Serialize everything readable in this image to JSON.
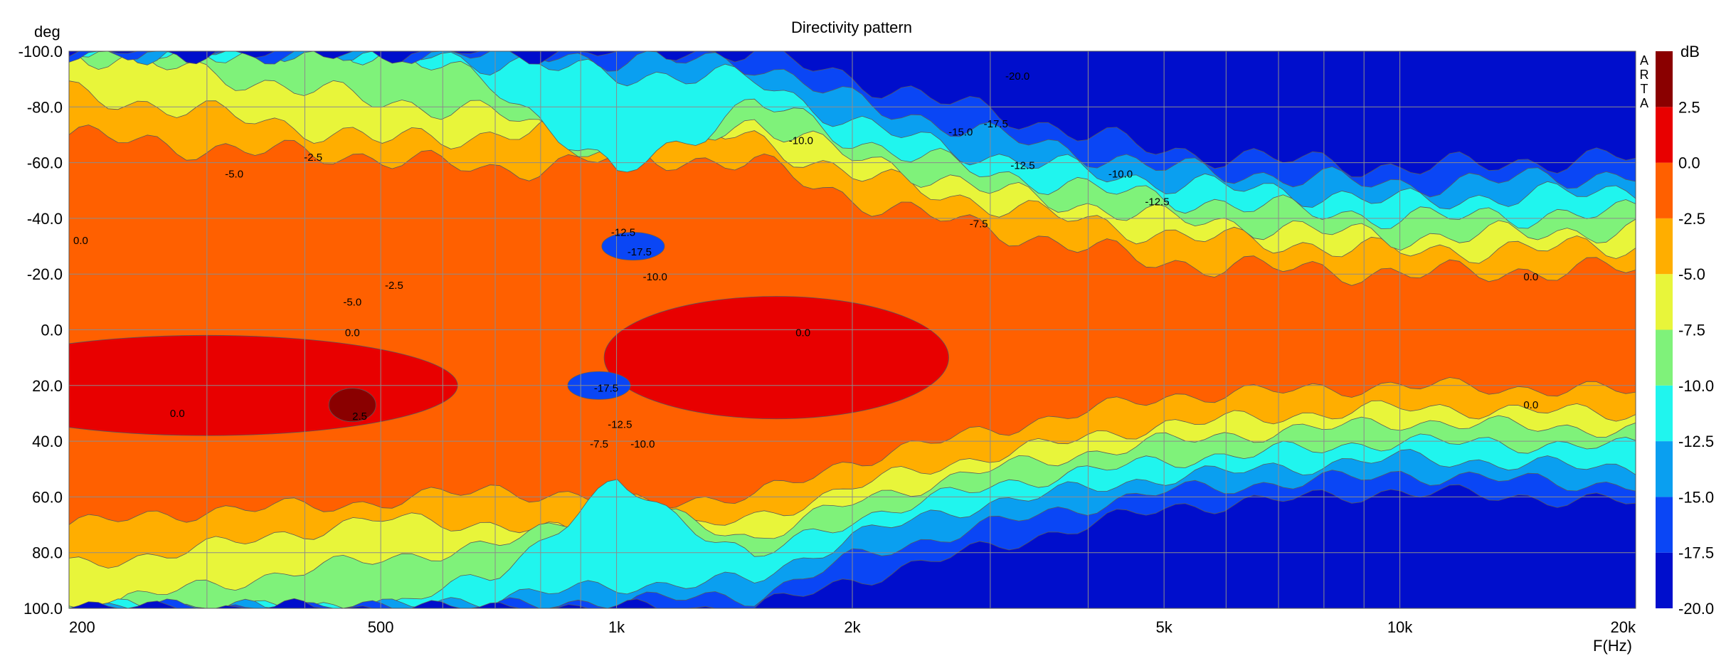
{
  "chart_data": {
    "type": "heatmap",
    "title": "Directivity pattern",
    "ylabel": "deg",
    "xlabel": "F(Hz)",
    "colorbar_label": "dB",
    "watermark": [
      "A",
      "R",
      "T",
      "A"
    ],
    "x_scale": "log",
    "xlim": [
      200,
      20000
    ],
    "ylim": [
      -100,
      100
    ],
    "x_ticks": [
      {
        "value": 200,
        "label": "200"
      },
      {
        "value": 500,
        "label": "500"
      },
      {
        "value": 1000,
        "label": "1k"
      },
      {
        "value": 2000,
        "label": "2k"
      },
      {
        "value": 5000,
        "label": "5k"
      },
      {
        "value": 10000,
        "label": "10k"
      },
      {
        "value": 20000,
        "label": "20k"
      }
    ],
    "x_grid": [
      200,
      300,
      400,
      500,
      600,
      700,
      800,
      900,
      1000,
      2000,
      3000,
      4000,
      5000,
      6000,
      7000,
      8000,
      9000,
      10000,
      20000
    ],
    "y_ticks": [
      "-100.0",
      "-80.0",
      "-60.0",
      "-40.0",
      "-20.0",
      "0.0",
      "20.0",
      "40.0",
      "60.0",
      "80.0",
      "100.0"
    ],
    "grid": true,
    "colorbar": {
      "levels": [
        -20,
        -17.5,
        -15,
        -12.5,
        -10,
        -7.5,
        -5,
        -2.5,
        0,
        2.5,
        5
      ],
      "tick_labels": [
        "2.5",
        "0.0",
        "-2.5",
        "-5.0",
        "-7.5",
        "-10.0",
        "-12.5",
        "-15.0",
        "-17.5",
        "-20.0"
      ],
      "colors": [
        "#000ecc",
        "#0a46f5",
        "#0a9ff0",
        "#20f5ee",
        "#7ff27a",
        "#e8f53a",
        "#ffae00",
        "#ff6000",
        "#e80000",
        "#8a0000"
      ]
    },
    "band_edges": [
      {
        "level": -2.5,
        "f": [
          200,
          300,
          500,
          700,
          1000,
          1500,
          2000,
          3000,
          5000,
          10000,
          20000
        ],
        "angle": [
          70,
          65,
          62,
          57,
          62,
          60,
          47,
          36,
          24,
          20,
          22
        ]
      },
      {
        "level": -5.0,
        "f": [
          200,
          300,
          500,
          700,
          1000,
          1500,
          2000,
          3000,
          5000,
          10000,
          20000
        ],
        "angle": [
          85,
          78,
          68,
          70,
          75,
          68,
          56,
          45,
          34,
          28,
          30
        ]
      },
      {
        "level": -7.5,
        "f": [
          200,
          300,
          500,
          700,
          1000,
          1500,
          2000,
          3000,
          5000,
          10000,
          20000
        ],
        "angle": [
          100,
          92,
          82,
          78,
          62,
          75,
          62,
          50,
          40,
          33,
          36
        ]
      },
      {
        "level": -10.0,
        "f": [
          200,
          300,
          500,
          700,
          1000,
          1500,
          2000,
          3000,
          5000,
          10000,
          20000
        ],
        "angle": [
          100,
          100,
          100,
          88,
          55,
          82,
          68,
          56,
          47,
          40,
          42
        ]
      },
      {
        "level": -12.5,
        "f": [
          200,
          300,
          500,
          700,
          1000,
          1500,
          2000,
          3000,
          5000,
          10000,
          20000
        ],
        "angle": [
          100,
          100,
          100,
          96,
          92,
          90,
          74,
          62,
          53,
          46,
          50
        ]
      },
      {
        "level": -15.0,
        "f": [
          200,
          300,
          500,
          700,
          1000,
          1500,
          2000,
          3000,
          5000,
          10000,
          20000
        ],
        "angle": [
          100,
          100,
          100,
          100,
          97,
          96,
          82,
          70,
          58,
          52,
          56
        ]
      },
      {
        "level": -17.5,
        "f": [
          200,
          300,
          500,
          700,
          1000,
          1500,
          2000,
          3000,
          5000,
          10000,
          20000
        ],
        "angle": [
          100,
          100,
          100,
          100,
          100,
          100,
          90,
          78,
          64,
          58,
          62
        ]
      }
    ],
    "hot_spots": [
      {
        "level": 0.0,
        "f": 300,
        "angle": 20,
        "df": 0.32,
        "da": 18
      },
      {
        "level": 0.0,
        "f": 1600,
        "angle": 10,
        "df": 0.22,
        "da": 22
      },
      {
        "level": 2.5,
        "f": 460,
        "angle": 27,
        "df": 0.03,
        "da": 6
      },
      {
        "level": -17.5,
        "f": 1050,
        "angle": -30,
        "df": 0.04,
        "da": 5
      },
      {
        "level": -17.5,
        "f": 950,
        "angle": 20,
        "df": 0.04,
        "da": 5
      }
    ],
    "contour_labels": [
      {
        "text": "0.0",
        "f": 207,
        "angle": -32
      },
      {
        "text": "-5.0",
        "f": 325,
        "angle": -56
      },
      {
        "text": "-2.5",
        "f": 410,
        "angle": -62
      },
      {
        "text": "-5.0",
        "f": 460,
        "angle": -10
      },
      {
        "text": "-2.5",
        "f": 520,
        "angle": -16
      },
      {
        "text": "0.0",
        "f": 460,
        "angle": 1
      },
      {
        "text": "0.0",
        "f": 275,
        "angle": 30
      },
      {
        "text": "2.5",
        "f": 470,
        "angle": 31
      },
      {
        "text": "-12.5",
        "f": 1020,
        "angle": -35
      },
      {
        "text": "-17.5",
        "f": 1070,
        "angle": -28
      },
      {
        "text": "-10.0",
        "f": 1120,
        "angle": -19
      },
      {
        "text": "-17.5",
        "f": 970,
        "angle": 21
      },
      {
        "text": "-12.5",
        "f": 1010,
        "angle": 34
      },
      {
        "text": "-7.5",
        "f": 950,
        "angle": 41
      },
      {
        "text": "-10.0",
        "f": 1080,
        "angle": 41
      },
      {
        "text": "0.0",
        "f": 1730,
        "angle": 1
      },
      {
        "text": "-10.0",
        "f": 1720,
        "angle": -68
      },
      {
        "text": "-7.5",
        "f": 2900,
        "angle": -38
      },
      {
        "text": "-15.0",
        "f": 2750,
        "angle": -71
      },
      {
        "text": "-17.5",
        "f": 3050,
        "angle": -74
      },
      {
        "text": "-20.0",
        "f": 3250,
        "angle": -91
      },
      {
        "text": "-12.5",
        "f": 3300,
        "angle": -59
      },
      {
        "text": "-10.0",
        "f": 4400,
        "angle": -56
      },
      {
        "text": "-12.5",
        "f": 4900,
        "angle": -46
      },
      {
        "text": "0.0",
        "f": 14700,
        "angle": -19
      },
      {
        "text": "0.0",
        "f": 14700,
        "angle": 27
      }
    ]
  }
}
